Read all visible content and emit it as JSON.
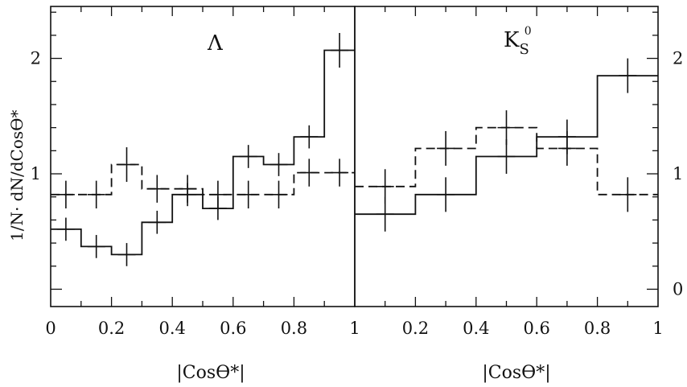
{
  "chart_data": [
    {
      "type": "line",
      "panel_label": "Λ",
      "xlabel": "|Cosϴ*|",
      "ylabel": "1/N· dN/dCosϴ*",
      "xlim": [
        0,
        1
      ],
      "ylim": [
        -0.15,
        2.45
      ],
      "x_ticks": [
        "0",
        "0.2",
        "0.4",
        "0.6",
        "0.8",
        "1"
      ],
      "y_ticks": [
        1,
        2
      ],
      "y_tick_labels": [
        "1",
        "2"
      ],
      "grid": false,
      "bin_edges": [
        0,
        0.1,
        0.2,
        0.3,
        0.4,
        0.5,
        0.6,
        0.7,
        0.8,
        0.9,
        1.0
      ],
      "series": [
        {
          "style": "solid",
          "values": [
            0.52,
            0.37,
            0.3,
            0.58,
            0.82,
            0.7,
            1.15,
            1.08,
            1.32,
            2.07
          ],
          "errors": [
            0.1,
            0.1,
            0.1,
            0.1,
            0.1,
            0.1,
            0.1,
            0.1,
            0.1,
            0.15
          ]
        },
        {
          "style": "dashed",
          "values": [
            0.82,
            0.82,
            1.08,
            0.87,
            0.87,
            0.82,
            0.82,
            0.82,
            1.01,
            1.01
          ],
          "errors": [
            0.12,
            0.12,
            0.15,
            0.12,
            0.12,
            0.12,
            0.12,
            0.12,
            0.12,
            0.12
          ]
        }
      ]
    },
    {
      "type": "line",
      "panel_label": "K",
      "panel_label_sub": "S",
      "panel_label_sup": "0",
      "xlabel": "|Cosϴ*|",
      "xlim": [
        0,
        1
      ],
      "ylim": [
        -0.15,
        2.45
      ],
      "x_ticks": [
        "0.2",
        "0.4",
        "0.6",
        "0.8",
        "1"
      ],
      "y_ticks": [
        0,
        1,
        2
      ],
      "y_tick_labels": [
        "0",
        "1",
        "2"
      ],
      "grid": false,
      "bin_edges": [
        0,
        0.2,
        0.4,
        0.6,
        0.8,
        1.0
      ],
      "series": [
        {
          "style": "solid",
          "values": [
            0.65,
            0.82,
            1.15,
            1.32,
            1.85
          ],
          "errors": [
            0.15,
            0.15,
            0.15,
            0.15,
            0.15
          ]
        },
        {
          "style": "dashed",
          "values": [
            0.89,
            1.22,
            1.4,
            1.22,
            0.82
          ],
          "errors": [
            0.15,
            0.15,
            0.15,
            0.15,
            0.15
          ]
        }
      ]
    }
  ]
}
